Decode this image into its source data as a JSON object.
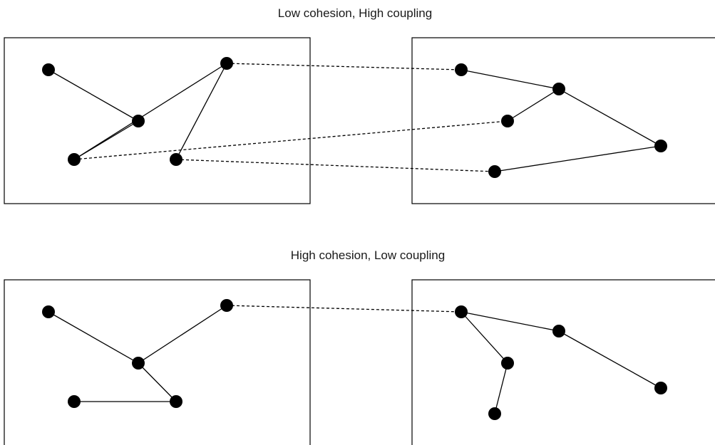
{
  "diagram": {
    "sections": [
      {
        "title": "Low cohesion, High coupling",
        "modules": [
          {
            "nodes": [
              {
                "id": "a1"
              },
              {
                "id": "a2"
              },
              {
                "id": "a3"
              },
              {
                "id": "a4"
              },
              {
                "id": "a5"
              }
            ],
            "edges": [
              [
                "a1",
                "a3"
              ],
              [
                "a3",
                "a2"
              ],
              [
                "a2",
                "a4"
              ],
              [
                "a4",
                "a5"
              ]
            ]
          },
          {
            "nodes": [
              {
                "id": "b1"
              },
              {
                "id": "b2"
              },
              {
                "id": "b3"
              },
              {
                "id": "b4"
              },
              {
                "id": "b5"
              }
            ],
            "edges": [
              [
                "b1",
                "b2"
              ],
              [
                "b2",
                "b3"
              ],
              [
                "b2",
                "b4"
              ],
              [
                "b4",
                "b5"
              ]
            ]
          }
        ],
        "couplings": [
          [
            "a4",
            "b1"
          ],
          [
            "a2",
            "b3"
          ],
          [
            "a5",
            "b5"
          ]
        ]
      },
      {
        "title": "High cohesion, Low coupling",
        "modules": [
          {
            "nodes": [
              {
                "id": "c1"
              },
              {
                "id": "c2"
              },
              {
                "id": "c3"
              },
              {
                "id": "c4"
              },
              {
                "id": "c5"
              }
            ],
            "edges": [
              [
                "c1",
                "c2"
              ],
              [
                "c2",
                "c3"
              ],
              [
                "c2",
                "c5"
              ],
              [
                "c5",
                "c4"
              ]
            ]
          },
          {
            "nodes": [
              {
                "id": "d1"
              },
              {
                "id": "d2"
              },
              {
                "id": "d3"
              },
              {
                "id": "d4"
              },
              {
                "id": "d5"
              }
            ],
            "edges": [
              [
                "d1",
                "d2"
              ],
              [
                "d2",
                "d4"
              ],
              [
                "d1",
                "d3"
              ],
              [
                "d3",
                "d5"
              ]
            ]
          }
        ],
        "couplings": [
          [
            "c3",
            "d1"
          ]
        ]
      }
    ]
  }
}
